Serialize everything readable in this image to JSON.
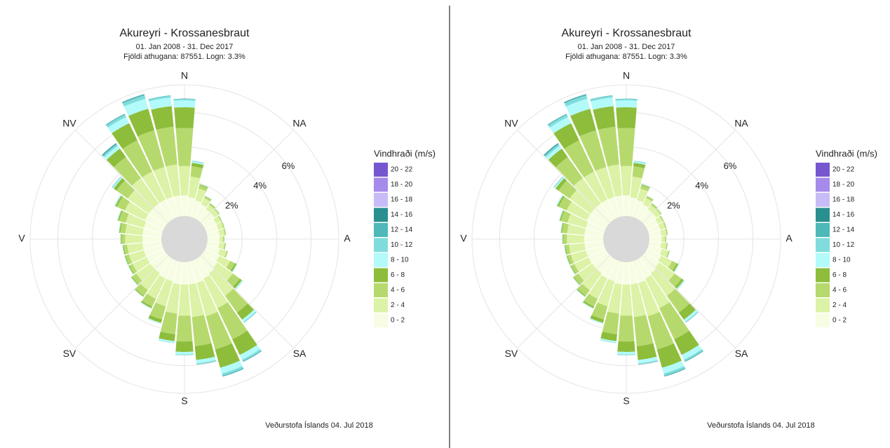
{
  "chart_data": [
    {
      "type": "windrose",
      "title": "Akureyri - Krossanesbraut",
      "subtitle": "01. Jan 2008 - 31. Dec 2017",
      "subtitle2": "Fjöldi athugana: 87551. Logn: 3.3%",
      "caption": "Veðurstofa Íslands  04. Jul 2018",
      "legend_title": "Vindhraði (m/s)",
      "x": [
        0,
        10,
        20,
        30,
        40,
        50,
        60,
        70,
        80,
        90,
        100,
        110,
        120,
        130,
        140,
        150,
        160,
        170,
        180,
        190,
        200,
        210,
        220,
        230,
        240,
        250,
        260,
        270,
        280,
        290,
        300,
        310,
        320,
        330,
        340,
        350
      ],
      "xlim": [
        0,
        360
      ],
      "xticks": [
        {
          "value": 0,
          "label": "N"
        },
        {
          "value": 45,
          "label": "NA"
        },
        {
          "value": 90,
          "label": "A"
        },
        {
          "value": 135,
          "label": "SA"
        },
        {
          "value": 180,
          "label": "S"
        },
        {
          "value": 225,
          "label": "SV"
        },
        {
          "value": 270,
          "label": "V"
        },
        {
          "value": 315,
          "label": "NV"
        }
      ],
      "ylim": [
        0,
        7.6
      ],
      "yticks": [
        {
          "value": 2,
          "label": "2%"
        },
        {
          "value": 4,
          "label": "4%"
        },
        {
          "value": 6,
          "label": "6%"
        }
      ],
      "series": [
        {
          "name": "0 - 2",
          "color": "#f7fde3",
          "values": [
            1.2,
            1.1,
            1.0,
            0.9,
            0.8,
            0.8,
            0.7,
            0.7,
            0.7,
            0.7,
            0.7,
            0.8,
            0.9,
            1.0,
            1.1,
            1.2,
            1.3,
            1.3,
            1.3,
            1.3,
            1.2,
            1.2,
            1.1,
            1.1,
            1.1,
            1.1,
            1.1,
            1.1,
            1.1,
            1.1,
            1.2,
            1.2,
            1.2,
            1.2,
            1.2,
            1.2
          ]
        },
        {
          "name": "2 - 4",
          "color": "#dcf2a6",
          "values": [
            1.7,
            1.2,
            0.7,
            0.4,
            0.3,
            0.3,
            0.3,
            0.3,
            0.3,
            0.2,
            0.3,
            0.4,
            0.7,
            1.1,
            1.6,
            1.9,
            2.0,
            1.9,
            1.8,
            1.7,
            1.5,
            1.3,
            1.2,
            1.0,
            0.9,
            0.9,
            0.9,
            1.0,
            1.0,
            1.1,
            1.3,
            1.5,
            1.8,
            1.8,
            1.8,
            1.8
          ]
        },
        {
          "name": "4 - 6",
          "color": "#b6d96e",
          "values": [
            2.2,
            0.6,
            0.2,
            0.1,
            0.1,
            0.05,
            0.05,
            0.05,
            0.05,
            0.05,
            0.05,
            0.05,
            0.3,
            0.5,
            1.2,
            2.0,
            2.0,
            1.7,
            1.5,
            1.2,
            0.8,
            0.5,
            0.4,
            0.3,
            0.2,
            0.2,
            0.2,
            0.2,
            0.3,
            0.4,
            0.5,
            0.8,
            1.5,
            2.0,
            2.2,
            2.2
          ]
        },
        {
          "name": "6 - 8",
          "color": "#8dbd3b",
          "values": [
            1.2,
            0.2,
            0.05,
            0.03,
            0.02,
            0.02,
            0.02,
            0.02,
            0.02,
            0.02,
            0.02,
            0.02,
            0.1,
            0.15,
            0.5,
            1.0,
            1.1,
            0.8,
            0.6,
            0.4,
            0.2,
            0.1,
            0.06,
            0.05,
            0.05,
            0.05,
            0.05,
            0.05,
            0.06,
            0.07,
            0.1,
            0.2,
            0.6,
            1.1,
            1.3,
            1.2
          ]
        },
        {
          "name": "8 - 10",
          "color": "#b3fafa",
          "values": [
            0.4,
            0.08,
            0.02,
            0.01,
            0.01,
            0.01,
            0.01,
            0.01,
            0.01,
            0.01,
            0.01,
            0.01,
            0.04,
            0.06,
            0.15,
            0.3,
            0.35,
            0.2,
            0.15,
            0.1,
            0.05,
            0.03,
            0.02,
            0.02,
            0.02,
            0.02,
            0.02,
            0.02,
            0.02,
            0.03,
            0.04,
            0.08,
            0.2,
            0.4,
            0.6,
            0.5
          ]
        },
        {
          "name": "10 - 12",
          "color": "#80dcdc",
          "values": [
            0.08,
            0.03,
            0.01,
            0,
            0,
            0,
            0,
            0,
            0,
            0,
            0,
            0,
            0.01,
            0.02,
            0.05,
            0.1,
            0.12,
            0.05,
            0.03,
            0.02,
            0.01,
            0.01,
            0.01,
            0.01,
            0.01,
            0.01,
            0.01,
            0.01,
            0.01,
            0.01,
            0.02,
            0.04,
            0.1,
            0.15,
            0.2,
            0.1
          ]
        },
        {
          "name": "12 - 14",
          "color": "#4fb8b8",
          "values": [
            0.02,
            0.01,
            0,
            0,
            0,
            0,
            0,
            0,
            0,
            0,
            0,
            0,
            0,
            0,
            0.01,
            0.04,
            0.05,
            0.02,
            0.01,
            0,
            0,
            0,
            0,
            0,
            0,
            0,
            0,
            0,
            0,
            0,
            0,
            0.01,
            0.06,
            0.05,
            0.06,
            0.03
          ]
        },
        {
          "name": "14 - 16",
          "color": "#2a8f8f",
          "values": [
            0,
            0,
            0,
            0,
            0,
            0,
            0,
            0,
            0,
            0,
            0,
            0,
            0,
            0,
            0,
            0.01,
            0.01,
            0,
            0,
            0,
            0,
            0,
            0,
            0,
            0,
            0,
            0,
            0,
            0,
            0,
            0,
            0,
            0.03,
            0.01,
            0.02,
            0
          ]
        },
        {
          "name": "16 - 18",
          "color": "#c9bbf7",
          "values": [
            0,
            0,
            0,
            0,
            0,
            0,
            0,
            0,
            0,
            0,
            0,
            0,
            0,
            0,
            0,
            0,
            0,
            0,
            0,
            0,
            0,
            0,
            0,
            0,
            0,
            0,
            0,
            0,
            0,
            0,
            0,
            0,
            0,
            0,
            0,
            0
          ]
        },
        {
          "name": "18 - 20",
          "color": "#a68beb",
          "values": [
            0,
            0,
            0,
            0,
            0,
            0,
            0,
            0,
            0,
            0,
            0,
            0,
            0,
            0,
            0,
            0,
            0,
            0,
            0,
            0,
            0,
            0,
            0,
            0,
            0,
            0,
            0,
            0,
            0,
            0,
            0,
            0,
            0,
            0,
            0,
            0
          ]
        },
        {
          "name": "20 - 22",
          "color": "#7657cf",
          "values": [
            0,
            0,
            0,
            0,
            0,
            0,
            0,
            0,
            0,
            0,
            0,
            0,
            0,
            0,
            0,
            0,
            0,
            0,
            0,
            0,
            0,
            0,
            0,
            0,
            0,
            0,
            0,
            0,
            0,
            0,
            0,
            0,
            0,
            0,
            0,
            0
          ]
        }
      ]
    },
    {
      "type": "windrose",
      "title": "Akureyri - Krossanesbraut",
      "subtitle": "01. Jan 2008 - 31. Dec 2017",
      "subtitle2": "Fjöldi athugana: 87551. Logn: 3.3%",
      "caption": "Veðurstofa Íslands  04. Jul 2018",
      "legend_title": "Vindhraði (m/s)",
      "x": [
        0,
        10,
        20,
        30,
        40,
        50,
        60,
        70,
        80,
        90,
        100,
        110,
        120,
        130,
        140,
        150,
        160,
        170,
        180,
        190,
        200,
        210,
        220,
        230,
        240,
        250,
        260,
        270,
        280,
        290,
        300,
        310,
        320,
        330,
        340,
        350
      ],
      "xlim": [
        0,
        360
      ],
      "xticks": [
        {
          "value": 0,
          "label": "N"
        },
        {
          "value": 45,
          "label": "NA"
        },
        {
          "value": 90,
          "label": "A"
        },
        {
          "value": 135,
          "label": "SA"
        },
        {
          "value": 180,
          "label": "S"
        },
        {
          "value": 225,
          "label": "SV"
        },
        {
          "value": 270,
          "label": "V"
        },
        {
          "value": 315,
          "label": "NV"
        }
      ],
      "ylim": [
        0,
        7.6
      ],
      "yticks": [
        {
          "value": 2,
          "label": "2%"
        },
        {
          "value": 4,
          "label": "4%"
        },
        {
          "value": 6,
          "label": "6%"
        }
      ],
      "series": [
        {
          "name": "0 - 2",
          "color": "#f7fde3",
          "values": [
            1.2,
            1.1,
            1.0,
            0.9,
            0.8,
            0.8,
            0.7,
            0.7,
            0.7,
            0.7,
            0.7,
            0.8,
            0.9,
            1.0,
            1.1,
            1.2,
            1.3,
            1.3,
            1.3,
            1.3,
            1.2,
            1.2,
            1.1,
            1.1,
            1.1,
            1.1,
            1.1,
            1.1,
            1.1,
            1.1,
            1.2,
            1.2,
            1.2,
            1.2,
            1.2,
            1.2
          ]
        },
        {
          "name": "2 - 4",
          "color": "#dcf2a6",
          "values": [
            1.7,
            1.2,
            0.7,
            0.4,
            0.3,
            0.3,
            0.3,
            0.3,
            0.3,
            0.2,
            0.3,
            0.4,
            0.7,
            1.1,
            1.6,
            1.9,
            2.0,
            1.9,
            1.8,
            1.7,
            1.5,
            1.3,
            1.2,
            1.0,
            0.9,
            0.9,
            0.9,
            1.0,
            1.0,
            1.1,
            1.3,
            1.5,
            1.8,
            1.8,
            1.8,
            1.8
          ]
        },
        {
          "name": "4 - 6",
          "color": "#b6d96e",
          "values": [
            2.2,
            0.6,
            0.2,
            0.1,
            0.1,
            0.05,
            0.05,
            0.05,
            0.05,
            0.05,
            0.05,
            0.05,
            0.3,
            0.5,
            1.2,
            2.0,
            2.0,
            1.7,
            1.5,
            1.2,
            0.8,
            0.5,
            0.4,
            0.3,
            0.2,
            0.2,
            0.2,
            0.2,
            0.3,
            0.4,
            0.5,
            0.8,
            1.5,
            2.0,
            2.2,
            2.2
          ]
        },
        {
          "name": "6 - 8",
          "color": "#8dbd3b",
          "values": [
            1.2,
            0.2,
            0.05,
            0.03,
            0.02,
            0.02,
            0.02,
            0.02,
            0.02,
            0.02,
            0.02,
            0.02,
            0.1,
            0.15,
            0.5,
            1.0,
            1.1,
            0.8,
            0.6,
            0.4,
            0.2,
            0.1,
            0.06,
            0.05,
            0.05,
            0.05,
            0.05,
            0.05,
            0.06,
            0.07,
            0.1,
            0.2,
            0.6,
            1.1,
            1.3,
            1.2
          ]
        },
        {
          "name": "8 - 10",
          "color": "#b3fafa",
          "values": [
            0.4,
            0.08,
            0.02,
            0.01,
            0.01,
            0.01,
            0.01,
            0.01,
            0.01,
            0.01,
            0.01,
            0.01,
            0.04,
            0.06,
            0.15,
            0.3,
            0.35,
            0.2,
            0.15,
            0.1,
            0.05,
            0.03,
            0.02,
            0.02,
            0.02,
            0.02,
            0.02,
            0.02,
            0.02,
            0.03,
            0.04,
            0.08,
            0.2,
            0.4,
            0.6,
            0.5
          ]
        },
        {
          "name": "10 - 12",
          "color": "#80dcdc",
          "values": [
            0.08,
            0.03,
            0.01,
            0,
            0,
            0,
            0,
            0,
            0,
            0,
            0,
            0,
            0.01,
            0.02,
            0.05,
            0.1,
            0.12,
            0.05,
            0.03,
            0.02,
            0.01,
            0.01,
            0.01,
            0.01,
            0.01,
            0.01,
            0.01,
            0.01,
            0.01,
            0.01,
            0.02,
            0.04,
            0.1,
            0.15,
            0.2,
            0.1
          ]
        },
        {
          "name": "12 - 14",
          "color": "#4fb8b8",
          "values": [
            0.02,
            0.01,
            0,
            0,
            0,
            0,
            0,
            0,
            0,
            0,
            0,
            0,
            0,
            0,
            0.01,
            0.04,
            0.05,
            0.02,
            0.01,
            0,
            0,
            0,
            0,
            0,
            0,
            0,
            0,
            0,
            0,
            0,
            0,
            0.01,
            0.06,
            0.05,
            0.06,
            0.03
          ]
        },
        {
          "name": "14 - 16",
          "color": "#2a8f8f",
          "values": [
            0,
            0,
            0,
            0,
            0,
            0,
            0,
            0,
            0,
            0,
            0,
            0,
            0,
            0,
            0,
            0.01,
            0.01,
            0,
            0,
            0,
            0,
            0,
            0,
            0,
            0,
            0,
            0,
            0,
            0,
            0,
            0,
            0,
            0.03,
            0.01,
            0.02,
            0
          ]
        },
        {
          "name": "16 - 18",
          "color": "#c9bbf7",
          "values": [
            0,
            0,
            0,
            0,
            0,
            0,
            0,
            0,
            0,
            0,
            0,
            0,
            0,
            0,
            0,
            0,
            0,
            0,
            0,
            0,
            0,
            0,
            0,
            0,
            0,
            0,
            0,
            0,
            0,
            0,
            0,
            0,
            0,
            0,
            0,
            0
          ]
        },
        {
          "name": "18 - 20",
          "color": "#a68beb",
          "values": [
            0,
            0,
            0,
            0,
            0,
            0,
            0,
            0,
            0,
            0,
            0,
            0,
            0,
            0,
            0,
            0,
            0,
            0,
            0,
            0,
            0,
            0,
            0,
            0,
            0,
            0,
            0,
            0,
            0,
            0,
            0,
            0,
            0,
            0,
            0,
            0
          ]
        },
        {
          "name": "20 - 22",
          "color": "#7657cf",
          "values": [
            0,
            0,
            0,
            0,
            0,
            0,
            0,
            0,
            0,
            0,
            0,
            0,
            0,
            0,
            0,
            0,
            0,
            0,
            0,
            0,
            0,
            0,
            0,
            0,
            0,
            0,
            0,
            0,
            0,
            0,
            0,
            0,
            0,
            0,
            0,
            0
          ]
        }
      ]
    }
  ]
}
